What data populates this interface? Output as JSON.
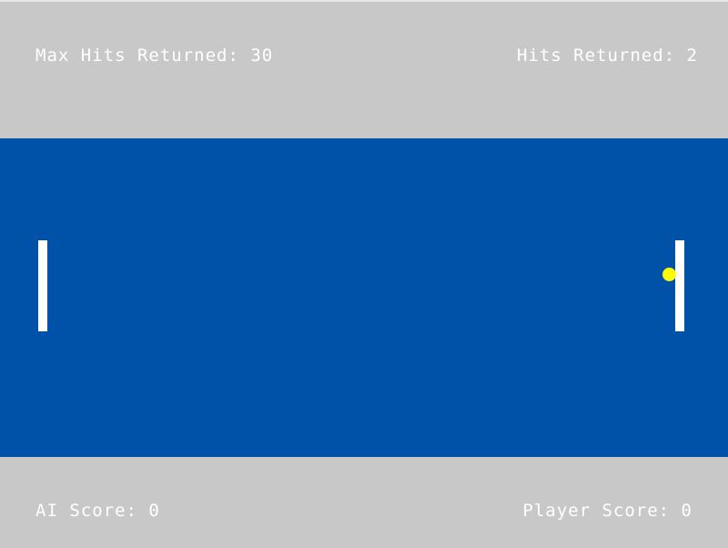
{
  "hud": {
    "max_hits": "Max Hits Returned: 30",
    "hits": "Hits Returned: 2",
    "ai_score": "AI Score: 0",
    "player_score": "Player Score: 0"
  },
  "colors": {
    "background": "#c8c8c8",
    "court": "#0051a8",
    "paddle": "#ffffff",
    "ball": "#ffff00",
    "text": "#ffffff"
  }
}
